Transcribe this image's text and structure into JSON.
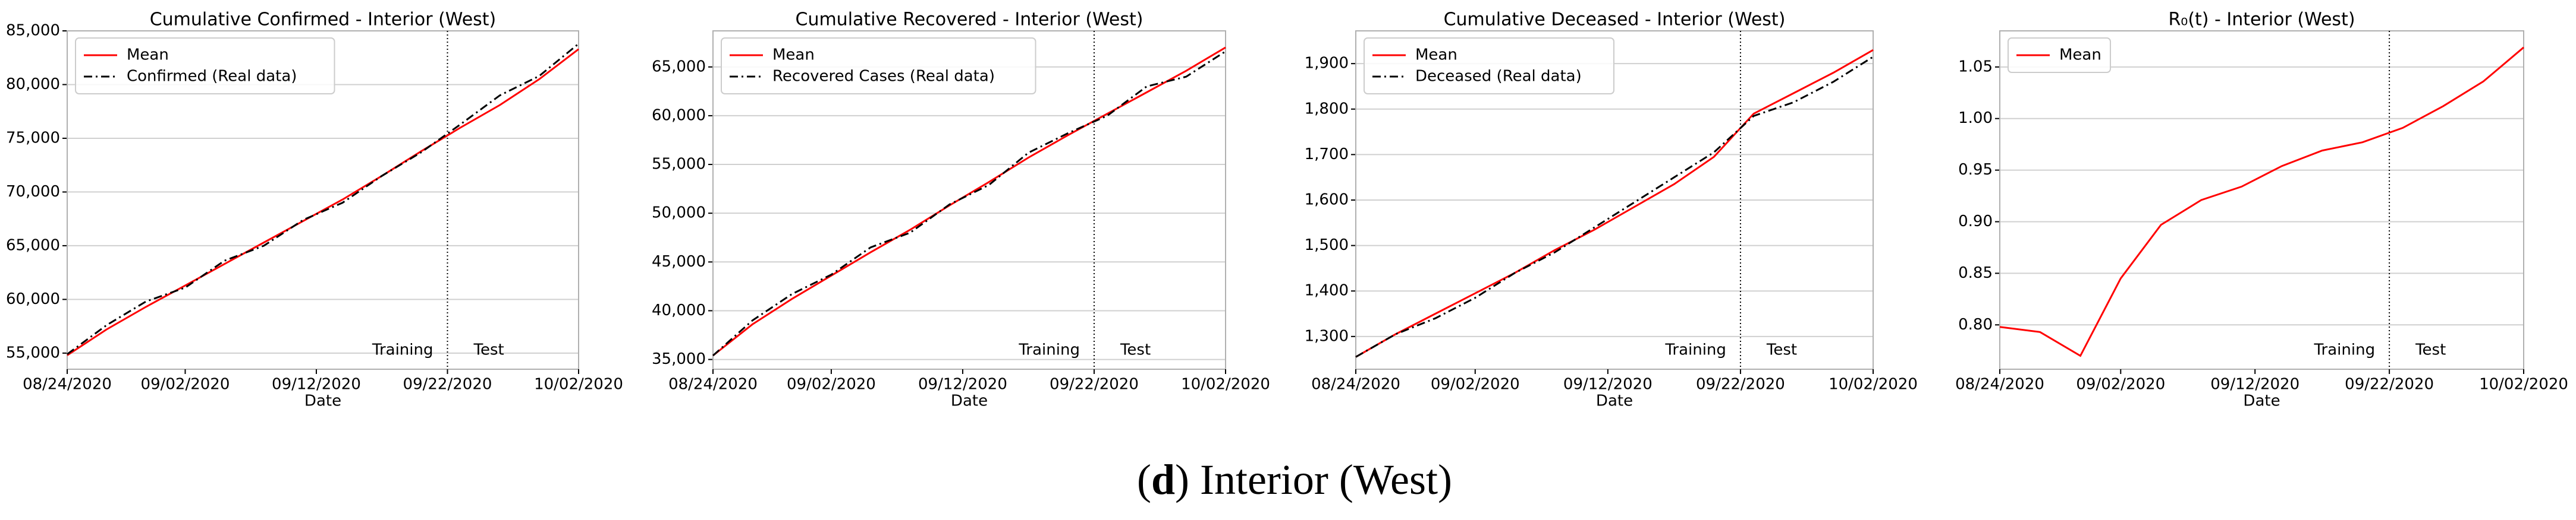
{
  "chart_data": [
    {
      "type": "line",
      "title": "Cumulative Confirmed - Interior (West)",
      "xlabel": "Date",
      "x": [
        "08/24/2020",
        "08/27/2020",
        "08/30/2020",
        "09/02/2020",
        "09/05/2020",
        "09/08/2020",
        "09/11/2020",
        "09/14/2020",
        "09/17/2020",
        "09/20/2020",
        "09/23/2020",
        "09/26/2020",
        "09/29/2020",
        "10/02/2020"
      ],
      "series": [
        {
          "name": "Mean",
          "color": "#ff0000",
          "style": "solid",
          "values": [
            54800,
            57200,
            59300,
            61300,
            63300,
            65300,
            67300,
            69300,
            71500,
            73800,
            76000,
            78100,
            80500,
            83300
          ]
        },
        {
          "name": "Confirmed (Real data)",
          "color": "#000000",
          "style": "dashdot",
          "values": [
            54900,
            57600,
            59800,
            61100,
            63600,
            65000,
            67400,
            69000,
            71500,
            73700,
            76300,
            79000,
            80800,
            83800
          ]
        }
      ],
      "xlim": [
        "08/24/2020",
        "10/02/2020"
      ],
      "xticks": [
        "08/24/2020",
        "09/02/2020",
        "09/12/2020",
        "09/22/2020",
        "10/02/2020"
      ],
      "ylim": [
        53500,
        85000
      ],
      "yticks": [
        {
          "value": 55000,
          "label": "55,000"
        },
        {
          "value": 60000,
          "label": "60,000"
        },
        {
          "value": 65000,
          "label": "65,000"
        },
        {
          "value": 70000,
          "label": "70,000"
        },
        {
          "value": 75000,
          "label": "75,000"
        },
        {
          "value": 80000,
          "label": "80,000"
        },
        {
          "value": 85000,
          "label": "85,000"
        }
      ],
      "vline_x": "09/22/2020",
      "annotations": [
        "Training",
        "Test"
      ],
      "grid": true,
      "legend": "upper left"
    },
    {
      "type": "line",
      "title": "Cumulative Recovered - Interior (West)",
      "xlabel": "Date",
      "x": [
        "08/24/2020",
        "08/27/2020",
        "08/30/2020",
        "09/02/2020",
        "09/05/2020",
        "09/08/2020",
        "09/11/2020",
        "09/14/2020",
        "09/17/2020",
        "09/20/2020",
        "09/23/2020",
        "09/26/2020",
        "09/29/2020",
        "10/02/2020"
      ],
      "series": [
        {
          "name": "Mean",
          "color": "#ff0000",
          "style": "solid",
          "values": [
            35400,
            38600,
            41200,
            43600,
            46000,
            48300,
            50800,
            53200,
            55700,
            58000,
            60200,
            62400,
            64600,
            67000
          ]
        },
        {
          "name": "Recovered Cases (Real data)",
          "color": "#000000",
          "style": "dashdot",
          "values": [
            35400,
            39000,
            41700,
            43700,
            46500,
            48000,
            50900,
            52900,
            56200,
            58200,
            60000,
            63000,
            64000,
            66600
          ]
        }
      ],
      "xlim": [
        "08/24/2020",
        "10/02/2020"
      ],
      "xticks": [
        "08/24/2020",
        "09/02/2020",
        "09/12/2020",
        "09/22/2020",
        "10/02/2020"
      ],
      "ylim": [
        34000,
        68700
      ],
      "yticks": [
        {
          "value": 35000,
          "label": "35,000"
        },
        {
          "value": 40000,
          "label": "40,000"
        },
        {
          "value": 45000,
          "label": "45,000"
        },
        {
          "value": 50000,
          "label": "50,000"
        },
        {
          "value": 55000,
          "label": "55,000"
        },
        {
          "value": 60000,
          "label": "60,000"
        },
        {
          "value": 65000,
          "label": "65,000"
        }
      ],
      "vline_x": "09/22/2020",
      "annotations": [
        "Training",
        "Test"
      ],
      "grid": true,
      "legend": "upper left"
    },
    {
      "type": "line",
      "title": "Cumulative Deceased - Interior (West)",
      "xlabel": "Date",
      "x": [
        "08/24/2020",
        "08/27/2020",
        "08/30/2020",
        "09/02/2020",
        "09/05/2020",
        "09/08/2020",
        "09/11/2020",
        "09/14/2020",
        "09/17/2020",
        "09/20/2020",
        "09/23/2020",
        "09/26/2020",
        "09/29/2020",
        "10/02/2020"
      ],
      "series": [
        {
          "name": "Mean",
          "color": "#ff0000",
          "style": "solid",
          "values": [
            1255,
            1305,
            1350,
            1395,
            1440,
            1490,
            1535,
            1585,
            1635,
            1695,
            1790,
            1835,
            1880,
            1930
          ]
        },
        {
          "name": "Deceased (Real data)",
          "color": "#000000",
          "style": "dashdot",
          "values": [
            1255,
            1305,
            1340,
            1385,
            1440,
            1485,
            1540,
            1595,
            1650,
            1705,
            1785,
            1815,
            1860,
            1915
          ]
        }
      ],
      "xlim": [
        "08/24/2020",
        "10/02/2020"
      ],
      "xticks": [
        "08/24/2020",
        "09/02/2020",
        "09/12/2020",
        "09/22/2020",
        "10/02/2020"
      ],
      "ylim": [
        1228,
        1972
      ],
      "yticks": [
        {
          "value": 1300,
          "label": "1,300"
        },
        {
          "value": 1400,
          "label": "1,400"
        },
        {
          "value": 1500,
          "label": "1,500"
        },
        {
          "value": 1600,
          "label": "1,600"
        },
        {
          "value": 1700,
          "label": "1,700"
        },
        {
          "value": 1800,
          "label": "1,800"
        },
        {
          "value": 1900,
          "label": "1,900"
        }
      ],
      "vline_x": "09/22/2020",
      "annotations": [
        "Training",
        "Test"
      ],
      "grid": true,
      "legend": "upper left"
    },
    {
      "type": "line",
      "title": "R₀(t) - Interior (West)",
      "xlabel": "Date",
      "x": [
        "08/24/2020",
        "08/27/2020",
        "08/30/2020",
        "09/02/2020",
        "09/05/2020",
        "09/08/2020",
        "09/11/2020",
        "09/14/2020",
        "09/17/2020",
        "09/20/2020",
        "09/23/2020",
        "09/26/2020",
        "09/29/2020",
        "10/02/2020"
      ],
      "series": [
        {
          "name": "Mean",
          "color": "#ff0000",
          "style": "solid",
          "values": [
            0.798,
            0.793,
            0.77,
            0.845,
            0.897,
            0.921,
            0.934,
            0.954,
            0.969,
            0.977,
            0.991,
            1.012,
            1.036,
            1.069
          ]
        }
      ],
      "xlim": [
        "08/24/2020",
        "10/02/2020"
      ],
      "xticks": [
        "08/24/2020",
        "09/02/2020",
        "09/12/2020",
        "09/22/2020",
        "10/02/2020"
      ],
      "ylim": [
        0.757,
        1.085
      ],
      "yticks": [
        {
          "value": 0.8,
          "label": "0.80"
        },
        0.85,
        {
          "value": 0.9,
          "label": "0.90"
        },
        0.95,
        {
          "value": 1,
          "label": "1.00"
        },
        1.05
      ],
      "vline_x": "09/22/2020",
      "annotations": [
        "Training",
        "Test"
      ],
      "grid": true,
      "legend": "upper left"
    }
  ],
  "caption": {
    "prefix": "(",
    "label": "d",
    "text": ") Interior (West)"
  }
}
